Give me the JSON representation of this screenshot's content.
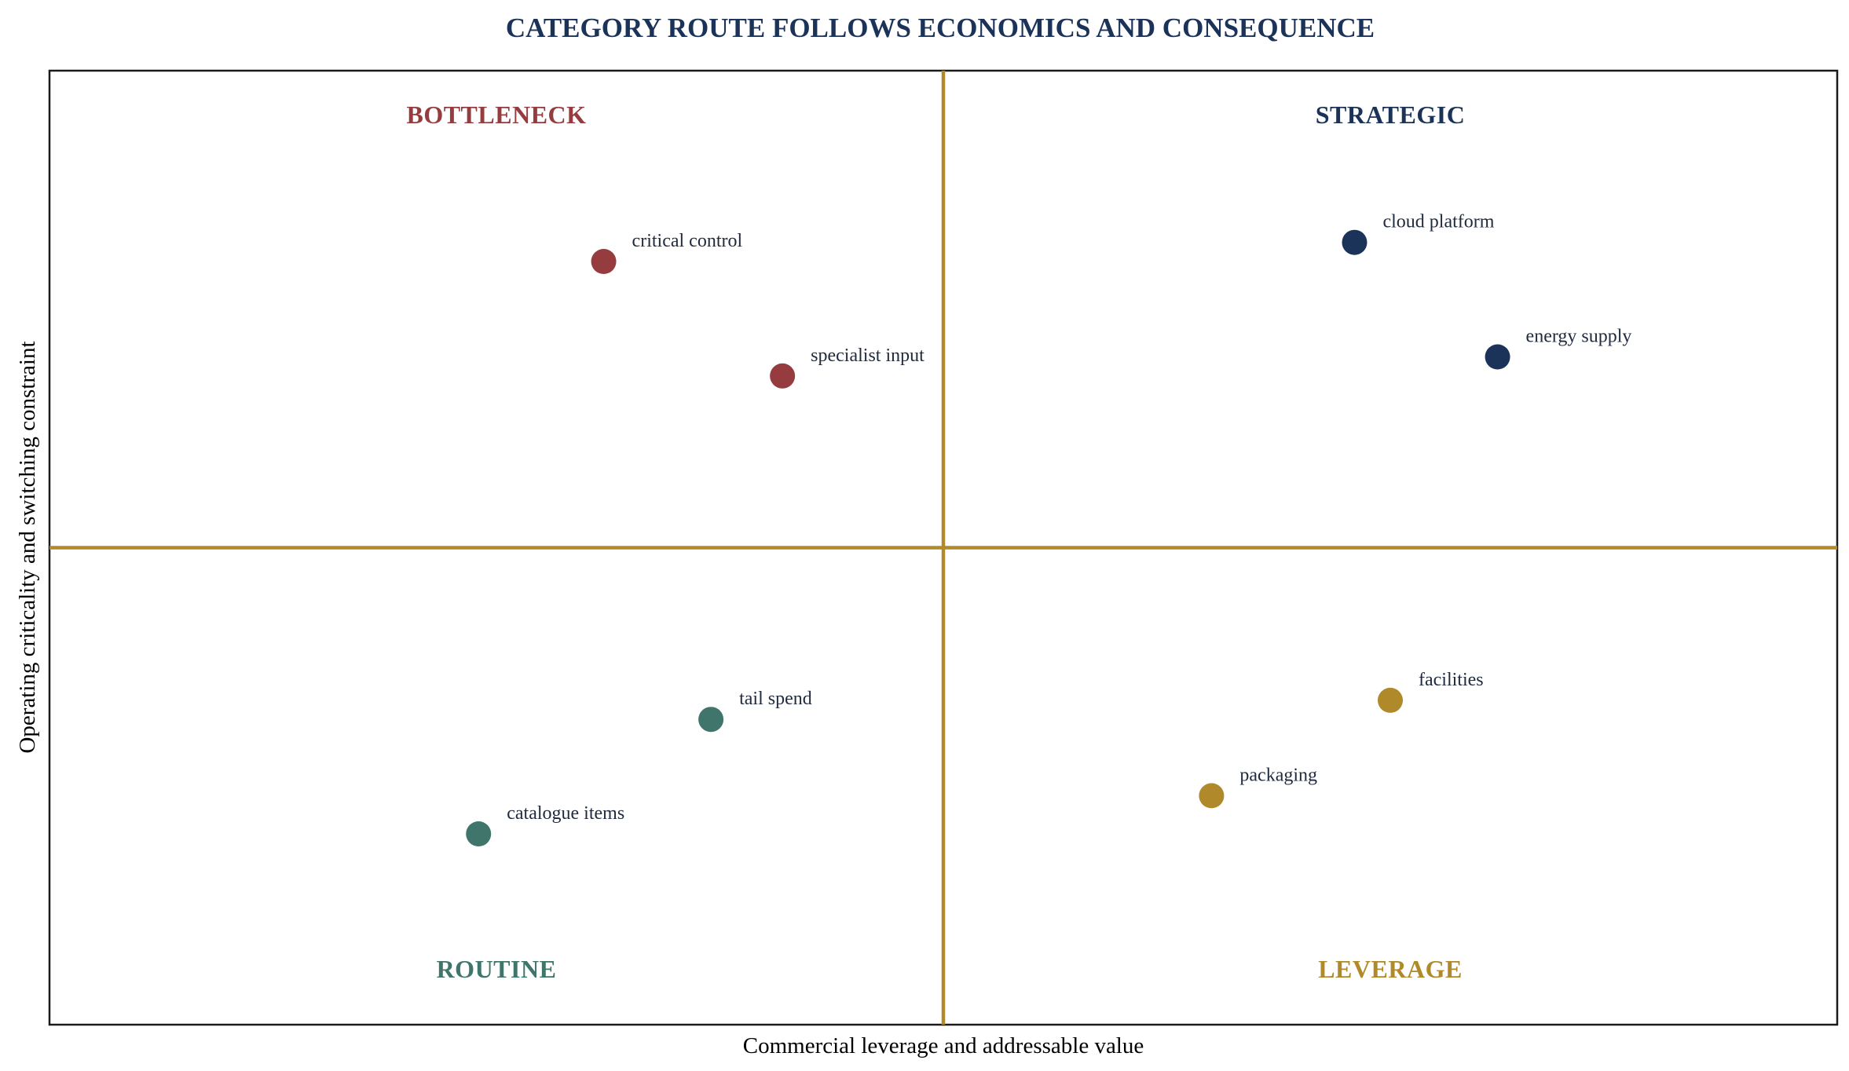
{
  "chart_data": {
    "type": "scatter",
    "title": "CATEGORY ROUTE FOLLOWS ECONOMICS AND CONSEQUENCE",
    "xlabel": "Commercial leverage and addressable value",
    "ylabel": "Operating criticality and switching constraint",
    "xlim": [
      0,
      10
    ],
    "ylim": [
      0,
      10
    ],
    "grid": false,
    "dividers": {
      "x": 5,
      "y": 5,
      "color": "#b08a2a"
    },
    "quadrants": [
      {
        "name": "BOTTLENECK",
        "position": "top-left",
        "color": "#963c3f"
      },
      {
        "name": "STRATEGIC",
        "position": "top-right",
        "color": "#1b3358"
      },
      {
        "name": "ROUTINE",
        "position": "bottom-left",
        "color": "#3f756b"
      },
      {
        "name": "LEVERAGE",
        "position": "bottom-right",
        "color": "#b08a2a"
      }
    ],
    "points": [
      {
        "label": "critical control",
        "x": 3.1,
        "y": 8.0,
        "quadrant": "BOTTLENECK",
        "color": "#963c3f"
      },
      {
        "label": "specialist input",
        "x": 4.1,
        "y": 6.8,
        "quadrant": "BOTTLENECK",
        "color": "#963c3f"
      },
      {
        "label": "cloud platform",
        "x": 7.3,
        "y": 8.2,
        "quadrant": "STRATEGIC",
        "color": "#1b3358"
      },
      {
        "label": "energy supply",
        "x": 8.1,
        "y": 7.0,
        "quadrant": "STRATEGIC",
        "color": "#1b3358"
      },
      {
        "label": "tail spend",
        "x": 3.7,
        "y": 3.2,
        "quadrant": "ROUTINE",
        "color": "#3f756b"
      },
      {
        "label": "catalogue items",
        "x": 2.4,
        "y": 2.0,
        "quadrant": "ROUTINE",
        "color": "#3f756b"
      },
      {
        "label": "facilities",
        "x": 7.5,
        "y": 3.4,
        "quadrant": "LEVERAGE",
        "color": "#b08a2a"
      },
      {
        "label": "packaging",
        "x": 6.5,
        "y": 2.4,
        "quadrant": "LEVERAGE",
        "color": "#b08a2a"
      }
    ]
  }
}
